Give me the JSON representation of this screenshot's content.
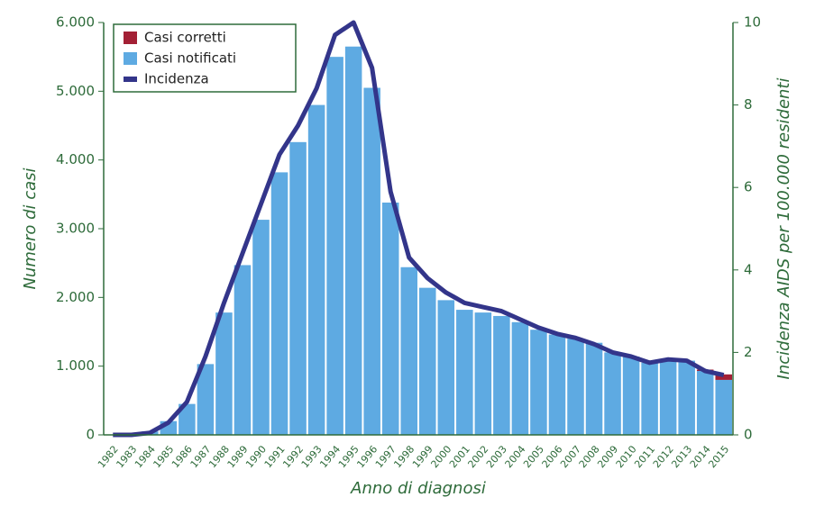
{
  "chart_data": {
    "type": "bar-line",
    "x_label": "Anno di diagnosi",
    "y_label": "Numero di casi",
    "y2_label": "Incidenza AIDS per 100.000 residenti",
    "categories": [
      "1982",
      "1983",
      "1984",
      "1985",
      "1986",
      "1987",
      "1988",
      "1989",
      "1990",
      "1991",
      "1992",
      "1993",
      "1994",
      "1995",
      "1996",
      "1997",
      "1998",
      "1999",
      "2000",
      "2001",
      "2002",
      "2003",
      "2004",
      "2005",
      "2006",
      "2007",
      "2008",
      "2009",
      "2010",
      "2011",
      "2012",
      "2013",
      "2014",
      "2015"
    ],
    "series": [
      {
        "name": "Casi notificati",
        "color": "#5eaae2",
        "kind": "bar",
        "values": [
          5,
          10,
          50,
          200,
          450,
          1030,
          1780,
          2470,
          3130,
          3820,
          4260,
          4800,
          5500,
          5650,
          5050,
          3380,
          2440,
          2140,
          1960,
          1820,
          1780,
          1730,
          1640,
          1530,
          1460,
          1400,
          1340,
          1200,
          1140,
          1050,
          1090,
          1080,
          930,
          800
        ]
      },
      {
        "name": "Casi corretti",
        "color": "#a32035",
        "kind": "bar",
        "values": [
          0,
          0,
          0,
          0,
          0,
          0,
          0,
          0,
          0,
          0,
          0,
          0,
          0,
          0,
          0,
          0,
          0,
          0,
          0,
          0,
          0,
          0,
          0,
          0,
          0,
          0,
          0,
          0,
          0,
          0,
          0,
          0,
          20,
          80
        ]
      },
      {
        "name": "Incidenza",
        "color": "#33358a",
        "kind": "line",
        "axis": "y2",
        "values": [
          0,
          0,
          0.05,
          0.3,
          0.8,
          1.9,
          3.2,
          4.4,
          5.6,
          6.8,
          7.5,
          8.4,
          9.7,
          10,
          8.9,
          5.9,
          4.3,
          3.8,
          3.45,
          3.2,
          3.1,
          3.0,
          2.8,
          2.6,
          2.45,
          2.35,
          2.2,
          2.0,
          1.9,
          1.75,
          1.83,
          1.8,
          1.55,
          1.45
        ]
      }
    ],
    "legend_order": [
      1,
      0,
      2
    ],
    "ylim": [
      0,
      6000
    ],
    "yticks": [
      0,
      {
        "value": 1000,
        "label": "1.000"
      },
      {
        "value": 2000,
        "label": "2.000"
      },
      {
        "value": 3000,
        "label": "3.000"
      },
      {
        "value": 4000,
        "label": "4.000"
      },
      {
        "value": 5000,
        "label": "5.000"
      },
      {
        "value": 6000,
        "label": "6.000"
      }
    ],
    "y2lim": [
      0,
      10
    ],
    "y2ticks": [
      0,
      2,
      4,
      6,
      8,
      10
    ]
  }
}
